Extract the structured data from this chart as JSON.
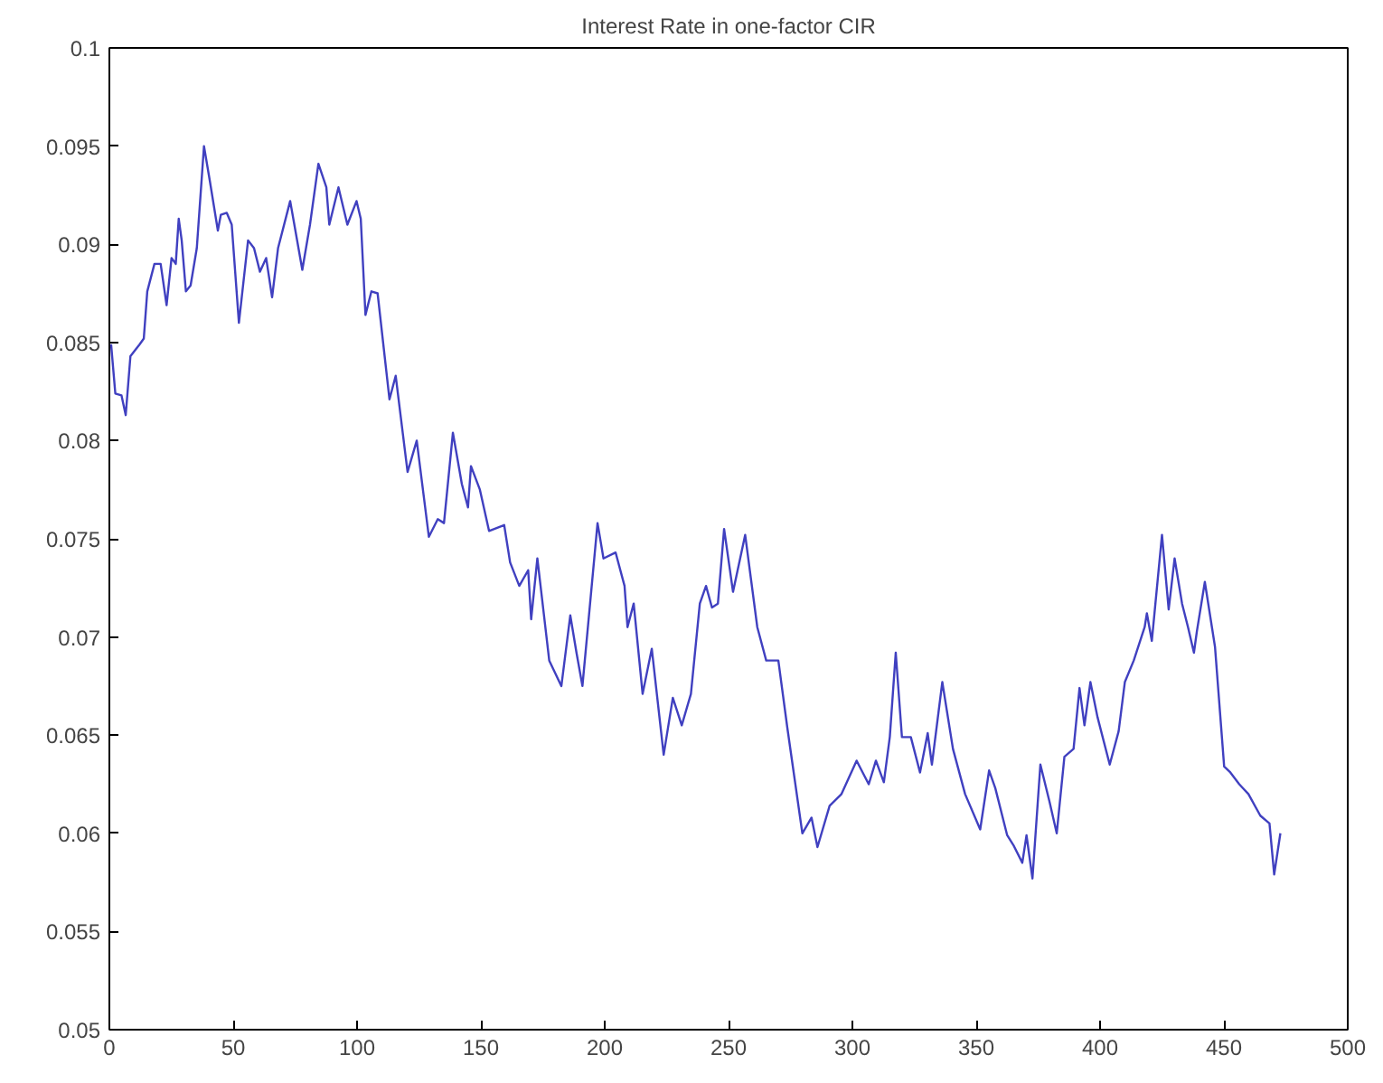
{
  "chart_data": {
    "type": "line",
    "title": "Interest Rate in one-factor CIR",
    "grid": false,
    "marker": "none",
    "line_style": "solid",
    "xlim": [
      0,
      500
    ],
    "xticks": [
      0,
      50,
      100,
      150,
      200,
      250,
      300,
      350,
      400,
      450,
      500
    ],
    "ylim": [
      0.05,
      0.1
    ],
    "yticks": [
      0.05,
      0.055,
      0.06,
      0.065,
      0.07,
      0.075,
      0.08,
      0.085,
      0.09,
      0.095,
      0.1
    ],
    "series": [
      {
        "color": "#4040c0",
        "x": [
          0.7,
          2.4,
          4.9,
          6.6,
          8.5,
          12.2,
          13.9,
          15.3,
          18.2,
          20.7,
          23.1,
          25.1,
          26.8,
          28.0,
          29.2,
          30.9,
          32.8,
          35.3,
          38.2,
          40.6,
          43.8,
          45.0,
          47.4,
          49.4,
          52.3,
          56.0,
          58.4,
          60.8,
          63.3,
          65.7,
          68.1,
          73.0,
          77.9,
          81.0,
          84.4,
          87.6,
          88.8,
          92.5,
          96.1,
          99.8,
          101.5,
          103.4,
          105.8,
          108.3,
          113.1,
          115.6,
          120.4,
          124.1,
          129.0,
          132.6,
          135.1,
          138.7,
          142.3,
          144.8,
          146.0,
          149.6,
          153.3,
          159.4,
          161.8,
          165.5,
          169.1,
          170.3,
          172.8,
          177.6,
          182.5,
          186.1,
          188.6,
          191.0,
          197.1,
          199.5,
          204.4,
          208.0,
          209.2,
          211.7,
          215.3,
          219.0,
          223.8,
          227.5,
          231.1,
          234.8,
          238.4,
          240.9,
          243.3,
          245.7,
          248.2,
          251.8,
          256.7,
          261.6,
          265.2,
          270.1,
          273.7,
          279.8,
          283.5,
          285.9,
          290.8,
          295.6,
          301.7,
          306.6,
          309.5,
          312.7,
          315.1,
          317.5,
          320.0,
          323.6,
          327.3,
          330.4,
          332.1,
          336.3,
          340.6,
          345.5,
          351.6,
          355.2,
          357.7,
          362.5,
          365.0,
          368.6,
          370.3,
          372.7,
          375.9,
          379.6,
          382.5,
          385.6,
          389.3,
          391.7,
          393.7,
          396.1,
          399.0,
          403.9,
          407.5,
          410.0,
          413.6,
          418.0,
          418.9,
          420.9,
          425.0,
          427.7,
          430.1,
          433.1,
          435.5,
          437.9,
          439.1,
          442.3,
          446.4,
          450.1,
          452.6,
          456.2,
          459.9,
          464.7,
          468.4,
          470.3,
          472.8
        ],
        "values": [
          0.0849,
          0.0824,
          0.0823,
          0.0813,
          0.0843,
          0.0849,
          0.0852,
          0.0876,
          0.089,
          0.089,
          0.0869,
          0.0893,
          0.089,
          0.0913,
          0.0902,
          0.0876,
          0.0879,
          0.0898,
          0.095,
          0.0932,
          0.0907,
          0.0915,
          0.0916,
          0.091,
          0.086,
          0.0902,
          0.0898,
          0.0886,
          0.0893,
          0.0873,
          0.0898,
          0.0922,
          0.0887,
          0.091,
          0.0941,
          0.0929,
          0.091,
          0.0929,
          0.091,
          0.0922,
          0.0913,
          0.0864,
          0.0876,
          0.0875,
          0.0821,
          0.0833,
          0.0784,
          0.08,
          0.0751,
          0.076,
          0.0758,
          0.0804,
          0.0778,
          0.0766,
          0.0787,
          0.0775,
          0.0754,
          0.0757,
          0.0738,
          0.0726,
          0.0734,
          0.0709,
          0.074,
          0.0688,
          0.0675,
          0.0711,
          0.0692,
          0.0675,
          0.0758,
          0.074,
          0.0743,
          0.0726,
          0.0705,
          0.0717,
          0.0671,
          0.0694,
          0.064,
          0.0669,
          0.0655,
          0.0671,
          0.0717,
          0.0726,
          0.0715,
          0.0717,
          0.0755,
          0.0723,
          0.0752,
          0.0705,
          0.0688,
          0.0688,
          0.0654,
          0.06,
          0.0608,
          0.0593,
          0.0614,
          0.062,
          0.0637,
          0.0625,
          0.0637,
          0.0626,
          0.0649,
          0.0692,
          0.0649,
          0.0649,
          0.0631,
          0.0651,
          0.0635,
          0.0677,
          0.0643,
          0.062,
          0.0602,
          0.0632,
          0.0623,
          0.0599,
          0.0594,
          0.0585,
          0.0599,
          0.0577,
          0.0635,
          0.0616,
          0.06,
          0.0639,
          0.0643,
          0.0674,
          0.0655,
          0.0677,
          0.0659,
          0.0635,
          0.0652,
          0.0677,
          0.0688,
          0.0705,
          0.0712,
          0.0698,
          0.0752,
          0.0714,
          0.074,
          0.0717,
          0.0705,
          0.0692,
          0.0703,
          0.0728,
          0.0695,
          0.0634,
          0.0631,
          0.0625,
          0.062,
          0.0609,
          0.0605,
          0.0579,
          0.06
        ]
      }
    ]
  }
}
